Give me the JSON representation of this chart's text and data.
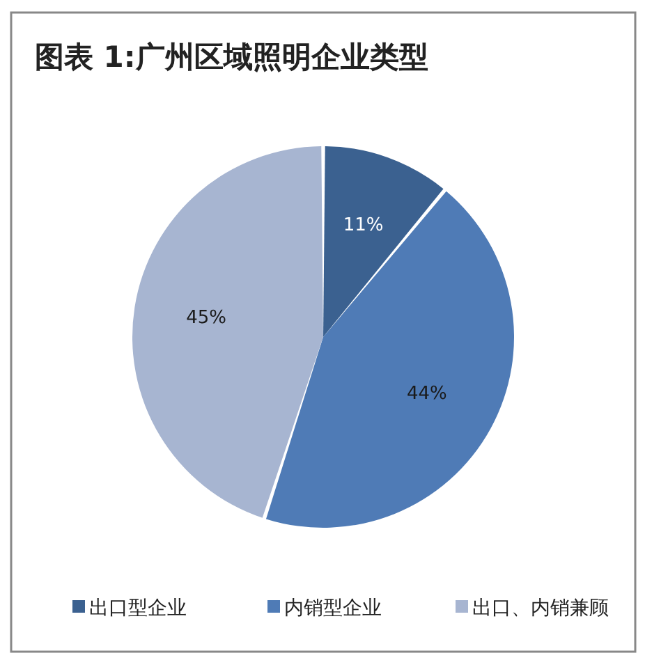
{
  "chart_data": {
    "type": "pie",
    "title": "图表 1:广州区域照明企业类型",
    "categories": [
      "出口型企业",
      "内销型企业",
      "出口、内销兼顾"
    ],
    "values": [
      11,
      44,
      45
    ],
    "colors": [
      "#3b6190",
      "#4f7bb6",
      "#a7b5d1"
    ],
    "value_labels": [
      "11%",
      "44%",
      "45%"
    ],
    "legend": "bottom"
  }
}
